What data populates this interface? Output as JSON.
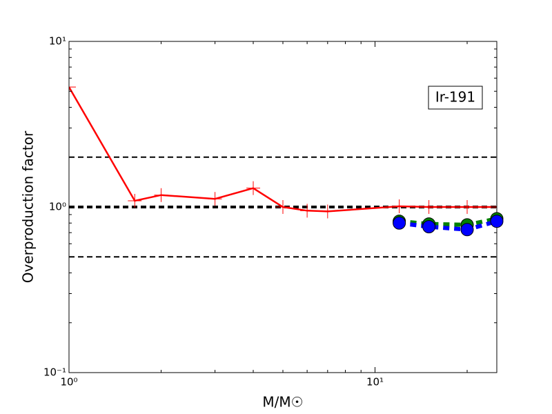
{
  "chart_data": {
    "type": "line",
    "xlabel": "M/M☉",
    "ylabel": "Overproduction factor",
    "annotation": "Ir-191",
    "xscale": "log",
    "yscale": "log",
    "xlim": [
      1,
      25
    ],
    "ylim": [
      0.1,
      10
    ],
    "xticks": [
      {
        "value": 1,
        "label": "10⁰"
      },
      {
        "value": 10,
        "label": "10¹"
      }
    ],
    "yticks": [
      {
        "value": 0.1,
        "label": "10⁻¹"
      },
      {
        "value": 1,
        "label": "10⁰"
      },
      {
        "value": 10,
        "label": "10¹"
      }
    ],
    "reference_lines": [
      {
        "value": 2,
        "width": 2
      },
      {
        "value": 1,
        "width": 4
      },
      {
        "value": 0.5,
        "width": 2
      }
    ],
    "series": [
      {
        "color": "#ff0000",
        "style": "solid",
        "marker": "plus",
        "x": [
          1,
          1.64,
          2,
          3,
          4,
          5,
          6,
          7,
          12,
          15,
          20,
          25
        ],
        "values": [
          5.3,
          1.09,
          1.18,
          1.12,
          1.3,
          1.0,
          0.95,
          0.94,
          1.01,
          1.0,
          1.0,
          1.0
        ]
      },
      {
        "color": "#008000",
        "style": "dashed",
        "marker": "circle",
        "x": [
          12,
          15,
          20,
          25
        ],
        "values": [
          0.82,
          0.79,
          0.78,
          0.85
        ]
      },
      {
        "color": "#0000ff",
        "style": "dashed",
        "marker": "circle",
        "x": [
          12,
          15,
          20,
          25
        ],
        "values": [
          0.8,
          0.76,
          0.73,
          0.82
        ]
      }
    ]
  }
}
